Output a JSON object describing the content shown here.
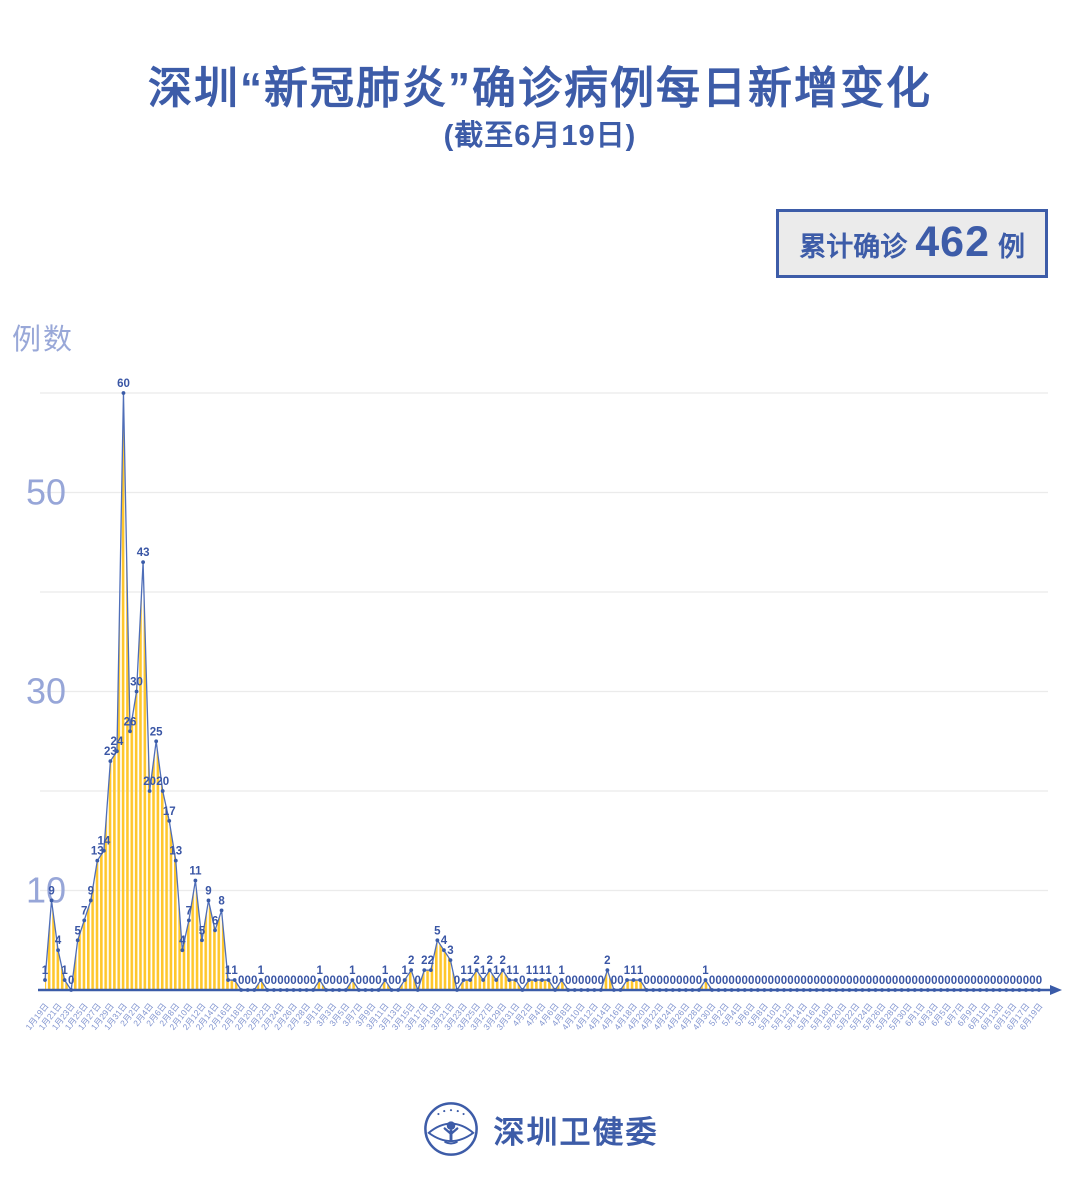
{
  "badge": {
    "label": "累计确诊",
    "value": "462",
    "unit": "例"
  },
  "footer": {
    "brand": "深圳卫健委",
    "logo": "shenzhen-health-commission-emblem"
  },
  "colors": {
    "title_blue": "#3D5CA8",
    "area_stripe_yellow": "#FFC72C",
    "line_blue": "#4F6EB8",
    "point_blue": "#3A5BA8",
    "value_label_blue": "#3A56A5",
    "axis_blue": "#3A5BA8",
    "y_tick_blue": "#97A6D8",
    "date_label_blue": "#8295D0",
    "gridline_gray": "#EBEBEB",
    "badge_bg_gray": "#EBEBEB"
  },
  "chart_data": {
    "type": "area",
    "title": "深圳“新冠肺炎”确诊病例每日新增变化",
    "subtitle": "(截至6月19日)",
    "ylabel": "例数",
    "xlabel": "",
    "yticks": [
      10,
      30,
      50
    ],
    "gridline_values": [
      10,
      20,
      30,
      40,
      50,
      60
    ],
    "ylim": [
      0,
      62
    ],
    "grid": true,
    "legend": "none",
    "point_labels": true,
    "x_label_every": 2,
    "total": 462,
    "dates": [
      "1月19日",
      "1月20日",
      "1月21日",
      "1月22日",
      "1月23日",
      "1月24日",
      "1月25日",
      "1月26日",
      "1月27日",
      "1月28日",
      "1月29日",
      "1月30日",
      "1月31日",
      "2月1日",
      "2月2日",
      "2月3日",
      "2月4日",
      "2月5日",
      "2月6日",
      "2月7日",
      "2月8日",
      "2月9日",
      "2月10日",
      "2月11日",
      "2月12日",
      "2月13日",
      "2月14日",
      "2月15日",
      "2月16日",
      "2月17日",
      "2月18日",
      "2月19日",
      "2月20日",
      "2月21日",
      "2月22日",
      "2月23日",
      "2月24日",
      "2月25日",
      "2月26日",
      "2月27日",
      "2月28日",
      "2月29日",
      "3月1日",
      "3月2日",
      "3月3日",
      "3月4日",
      "3月5日",
      "3月6日",
      "3月7日",
      "3月8日",
      "3月9日",
      "3月10日",
      "3月11日",
      "3月12日",
      "3月13日",
      "3月14日",
      "3月15日",
      "3月16日",
      "3月17日",
      "3月18日",
      "3月19日",
      "3月20日",
      "3月21日",
      "3月22日",
      "3月23日",
      "3月24日",
      "3月25日",
      "3月26日",
      "3月27日",
      "3月28日",
      "3月29日",
      "3月30日",
      "3月31日",
      "4月1日",
      "4月2日",
      "4月3日",
      "4月4日",
      "4月5日",
      "4月6日",
      "4月7日",
      "4月8日",
      "4月9日",
      "4月10日",
      "4月11日",
      "4月12日",
      "4月13日",
      "4月14日",
      "4月15日",
      "4月16日",
      "4月17日",
      "4月18日",
      "4月19日",
      "4月20日",
      "4月21日",
      "4月22日",
      "4月23日",
      "4月24日",
      "4月25日",
      "4月26日",
      "4月27日",
      "4月28日",
      "4月29日",
      "4月30日",
      "5月1日",
      "5月2日",
      "5月3日",
      "5月4日",
      "5月5日",
      "5月6日",
      "5月7日",
      "5月8日",
      "5月9日",
      "5月10日",
      "5月11日",
      "5月12日",
      "5月13日",
      "5月14日",
      "5月15日",
      "5月16日",
      "5月17日",
      "5月18日",
      "5月19日",
      "5月20日",
      "5月21日",
      "5月22日",
      "5月23日",
      "5月24日",
      "5月25日",
      "5月26日",
      "5月27日",
      "5月28日",
      "5月29日",
      "5月30日",
      "5月31日",
      "6月1日",
      "6月2日",
      "6月3日",
      "6月4日",
      "6月5日",
      "6月6日",
      "6月7日",
      "6月8日",
      "6月9日",
      "6月10日",
      "6月11日",
      "6月12日",
      "6月13日",
      "6月14日",
      "6月15日",
      "6月16日",
      "6月17日",
      "6月18日",
      "6月19日"
    ],
    "values": [
      1,
      9,
      4,
      1,
      0,
      5,
      7,
      9,
      13,
      14,
      23,
      24,
      60,
      26,
      30,
      43,
      20,
      25,
      20,
      17,
      13,
      4,
      7,
      11,
      5,
      9,
      6,
      8,
      1,
      1,
      0,
      0,
      0,
      1,
      0,
      0,
      0,
      0,
      0,
      0,
      0,
      0,
      1,
      0,
      0,
      0,
      0,
      1,
      0,
      0,
      0,
      0,
      1,
      0,
      0,
      1,
      2,
      0,
      2,
      2,
      5,
      4,
      3,
      0,
      1,
      1,
      2,
      1,
      2,
      1,
      2,
      1,
      1,
      0,
      1,
      1,
      1,
      1,
      0,
      1,
      0,
      0,
      0,
      0,
      0,
      0,
      2,
      0,
      0,
      1,
      1,
      1,
      0,
      0,
      0,
      0,
      0,
      0,
      0,
      0,
      0,
      1,
      0,
      0,
      0,
      0,
      0,
      0,
      0,
      0,
      0,
      0,
      0,
      0,
      0,
      0,
      0,
      0,
      0,
      0,
      0,
      0,
      0,
      0,
      0,
      0,
      0,
      0,
      0,
      0,
      0,
      0,
      0,
      0,
      0,
      0,
      0,
      0,
      0,
      0,
      0,
      0,
      0,
      0,
      0,
      0,
      0,
      0,
      0,
      0,
      0,
      0,
      0
    ]
  }
}
